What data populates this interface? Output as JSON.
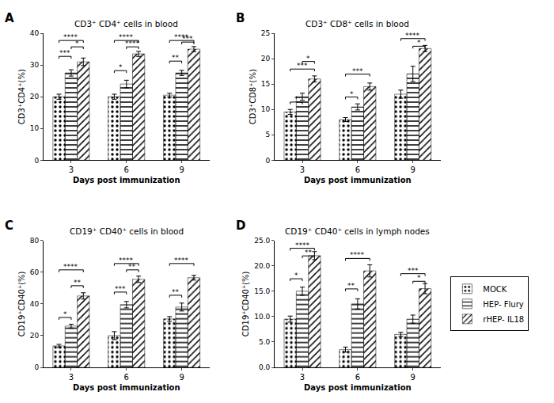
{
  "chart_data": [
    {
      "type": "bar",
      "label": "A",
      "title": "CD3⁺ CD4⁺ cells in blood",
      "xlabel": "Days post immunization",
      "ylabel": "CD3⁺CD4⁺(%)",
      "categories": [
        "3",
        "6",
        "9"
      ],
      "series": [
        {
          "name": "MOCK",
          "color": "#909090",
          "marker": "dots",
          "values": [
            20.0,
            20.0,
            20.5
          ],
          "errors": [
            0.8,
            0.8,
            0.6
          ]
        },
        {
          "name": "HEP- Flury",
          "color": "#ffffff",
          "marker": "hlines",
          "values": [
            27.5,
            24.0,
            27.5
          ],
          "errors": [
            1.0,
            1.2,
            0.8
          ]
        },
        {
          "name": "rHEP- IL18",
          "color": "#b8b8b8",
          "marker": "diagonal",
          "values": [
            31.0,
            33.5,
            35.0
          ],
          "errors": [
            1.2,
            0.8,
            0.8
          ]
        }
      ],
      "ylim": [
        0,
        40
      ],
      "yticks": [
        0,
        10,
        20,
        30,
        40
      ],
      "grid": false,
      "annotations": [
        {
          "between": [
            0,
            2
          ],
          "y": 37.0,
          "text": "****"
        },
        {
          "between": [
            0,
            1
          ],
          "y": 32.0,
          "text": "***"
        },
        {
          "between": [
            1,
            2
          ],
          "y": 35.0,
          "text": "*"
        },
        {
          "between": [
            3,
            5
          ],
          "y": 37.0,
          "text": "****"
        },
        {
          "between": [
            3,
            4
          ],
          "y": 27.5,
          "text": "*"
        },
        {
          "between": [
            4,
            5
          ],
          "y": 35.0,
          "text": "****"
        },
        {
          "between": [
            6,
            8
          ],
          "y": 37.0,
          "text": "****"
        },
        {
          "between": [
            6,
            7
          ],
          "y": 30.5,
          "text": "**"
        },
        {
          "between": [
            7,
            8
          ],
          "y": 36.5,
          "text": "***"
        }
      ]
    },
    {
      "type": "bar",
      "label": "B",
      "title": "CD3⁺ CD8⁺ cells in blood",
      "xlabel": "Days post immunization",
      "ylabel": "CD3⁺CD8⁺(%)",
      "categories": [
        "3",
        "6",
        "9"
      ],
      "series": [
        {
          "name": "MOCK",
          "color": "#909090",
          "marker": "dots",
          "values": [
            9.5,
            8.0,
            13.0
          ],
          "errors": [
            0.5,
            0.4,
            0.8
          ]
        },
        {
          "name": "HEP- Flury",
          "color": "#ffffff",
          "marker": "hlines",
          "values": [
            12.5,
            10.5,
            17.0
          ],
          "errors": [
            0.7,
            0.6,
            1.5
          ]
        },
        {
          "name": "rHEP- IL18",
          "color": "#b8b8b8",
          "marker": "diagonal",
          "values": [
            16.0,
            14.5,
            22.0
          ],
          "errors": [
            0.6,
            0.7,
            0.6
          ]
        }
      ],
      "ylim": [
        0,
        25
      ],
      "yticks": [
        0,
        5,
        10,
        15,
        20,
        25
      ],
      "grid": false,
      "annotations": [
        {
          "between": [
            0,
            1
          ],
          "y": 11.0,
          "text": "*"
        },
        {
          "between": [
            0,
            2
          ],
          "y": 17.5,
          "text": "***"
        },
        {
          "between": [
            1,
            2
          ],
          "y": 19.0,
          "text": "*"
        },
        {
          "between": [
            3,
            4
          ],
          "y": 12.0,
          "text": "*"
        },
        {
          "between": [
            3,
            5
          ],
          "y": 16.5,
          "text": "***"
        },
        {
          "between": [
            6,
            8
          ],
          "y": 23.5,
          "text": "****"
        },
        {
          "between": [
            7,
            8
          ],
          "y": 22.0,
          "text": "*"
        }
      ]
    },
    {
      "type": "bar",
      "label": "C",
      "title": "CD19⁺ CD40⁺ cells in blood",
      "xlabel": "Days post immunization",
      "ylabel": "CD19⁺CD40⁺(%)",
      "categories": [
        "3",
        "6",
        "9"
      ],
      "series": [
        {
          "name": "MOCK",
          "color": "#909090",
          "marker": "dots",
          "values": [
            13.5,
            20.0,
            30.5
          ],
          "errors": [
            1.0,
            2.5,
            1.5
          ]
        },
        {
          "name": "HEP- Flury",
          "color": "#ffffff",
          "marker": "hlines",
          "values": [
            26.0,
            39.5,
            38.0
          ],
          "errors": [
            1.2,
            2.0,
            2.5
          ]
        },
        {
          "name": "rHEP- IL18",
          "color": "#b8b8b8",
          "marker": "diagonal",
          "values": [
            45.0,
            55.5,
            56.5
          ],
          "errors": [
            2.0,
            2.0,
            1.5
          ]
        }
      ],
      "ylim": [
        0,
        80
      ],
      "yticks": [
        0,
        20,
        40,
        60,
        80
      ],
      "grid": false,
      "annotations": [
        {
          "between": [
            0,
            1
          ],
          "y": 30.0,
          "text": "*"
        },
        {
          "between": [
            0,
            2
          ],
          "y": 60.0,
          "text": "****"
        },
        {
          "between": [
            1,
            2
          ],
          "y": 50.0,
          "text": "**"
        },
        {
          "between": [
            3,
            4
          ],
          "y": 46.0,
          "text": "***"
        },
        {
          "between": [
            3,
            5
          ],
          "y": 64.0,
          "text": "****"
        },
        {
          "between": [
            4,
            5
          ],
          "y": 60.0,
          "text": "**"
        },
        {
          "between": [
            6,
            7
          ],
          "y": 44.0,
          "text": "**"
        },
        {
          "between": [
            6,
            8
          ],
          "y": 64.0,
          "text": "****"
        }
      ]
    },
    {
      "type": "bar",
      "label": "D",
      "title": "CD19⁺ CD40⁺ cells in lymph nodes",
      "xlabel": "Days post immunization",
      "ylabel": "CD19⁺CD40⁺(%)",
      "categories": [
        "3",
        "6",
        "9"
      ],
      "series": [
        {
          "name": "MOCK",
          "color": "#909090",
          "marker": "dots",
          "values": [
            9.5,
            3.5,
            6.5
          ],
          "errors": [
            0.6,
            0.5,
            0.4
          ]
        },
        {
          "name": "HEP- Flury",
          "color": "#ffffff",
          "marker": "hlines",
          "values": [
            15.0,
            12.5,
            9.5
          ],
          "errors": [
            0.8,
            1.0,
            0.8
          ]
        },
        {
          "name": "rHEP- IL18",
          "color": "#b8b8b8",
          "marker": "diagonal",
          "values": [
            22.0,
            19.0,
            15.5
          ],
          "errors": [
            0.8,
            1.2,
            1.0
          ]
        }
      ],
      "ylim": [
        0,
        25
      ],
      "yticks": [
        {
          "value": 0.0,
          "label": "0.0"
        },
        {
          "value": 5.0,
          "label": "5.0"
        },
        {
          "value": 10.0,
          "label": "10.0"
        },
        {
          "value": 15.0,
          "label": "15.0"
        },
        {
          "value": 20.0,
          "label": "20.0"
        },
        {
          "value": 25.0,
          "label": "25.0"
        }
      ],
      "grid": false,
      "legend": "right",
      "annotations": [
        {
          "between": [
            0,
            1
          ],
          "y": 17.0,
          "text": "*"
        },
        {
          "between": [
            0,
            2
          ],
          "y": 23.0,
          "text": "****"
        },
        {
          "between": [
            1,
            2
          ],
          "y": 21.5,
          "text": "**"
        },
        {
          "between": [
            3,
            4
          ],
          "y": 15.0,
          "text": "**"
        },
        {
          "between": [
            3,
            5
          ],
          "y": 21.0,
          "text": "****"
        },
        {
          "between": [
            6,
            8
          ],
          "y": 18.0,
          "text": "***"
        },
        {
          "between": [
            7,
            8
          ],
          "y": 16.5,
          "text": "*"
        }
      ]
    }
  ]
}
